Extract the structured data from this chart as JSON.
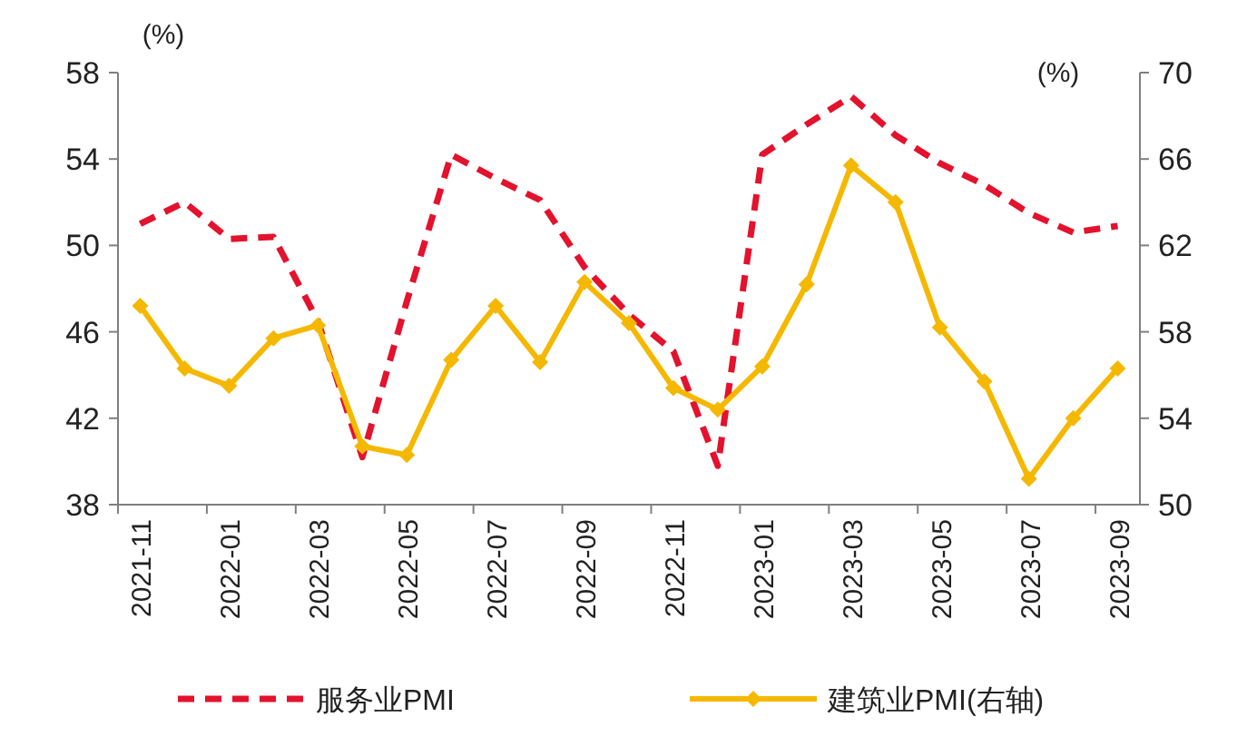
{
  "chart_data": {
    "type": "line",
    "ylabel": "(%)",
    "y2label": "(%)",
    "categories": [
      "2021-11",
      null,
      "2022-01",
      null,
      "2022-03",
      null,
      "2022-05",
      null,
      "2022-07",
      null,
      "2022-09",
      null,
      "2022-11",
      null,
      "2023-01",
      null,
      "2023-03",
      null,
      "2023-05",
      null,
      "2023-07",
      null,
      "2023-09"
    ],
    "series": [
      {
        "name": "服务业PMI",
        "color": "#e3122d",
        "line_style": "dashed",
        "marker": "none",
        "values": [
          51.0,
          52.0,
          50.3,
          50.4,
          46.5,
          40.2,
          47.4,
          54.2,
          53.1,
          52.1,
          49.0,
          46.8,
          45.1,
          39.8,
          54.2,
          55.6,
          56.9,
          55.1,
          53.8,
          52.8,
          51.5,
          50.6,
          50.9
        ]
      },
      {
        "name": "建筑业PMI(右轴)",
        "color": "#f5b800",
        "line_style": "solid",
        "marker": "diamond",
        "axis": "y2",
        "values": [
          59.2,
          56.3,
          55.5,
          57.7,
          58.3,
          52.7,
          52.3,
          56.7,
          59.2,
          56.6,
          60.3,
          58.4,
          55.4,
          54.4,
          56.4,
          60.2,
          65.7,
          64.0,
          58.2,
          55.7,
          51.2,
          54.0,
          56.3
        ]
      }
    ],
    "ylim": [
      38,
      58
    ],
    "yticks": [
      38,
      42,
      46,
      50,
      54,
      58
    ],
    "y2lim": [
      50,
      70
    ],
    "y2ticks": [
      50,
      54,
      58,
      62,
      66,
      70
    ],
    "legend": "bottom"
  }
}
